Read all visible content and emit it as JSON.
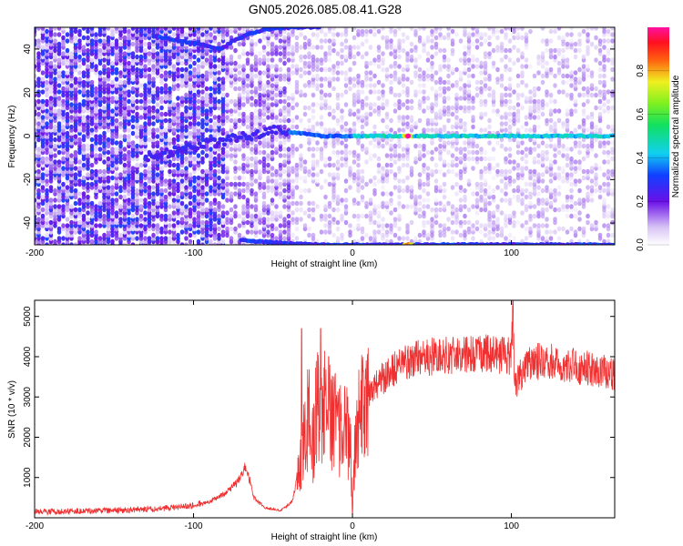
{
  "title": "GN05.2026.085.08.41.G28",
  "colors": {
    "snr_line": "#f03030",
    "spectrogram_base": "#7a20e8",
    "spectrogram_light": "#e4d2f7"
  },
  "chart_data": [
    {
      "type": "heatmap",
      "name": "spectrogram",
      "xlabel": "Height of straight line (km)",
      "ylabel": "Frequency (Hz)",
      "xlim": [
        -200,
        165
      ],
      "ylim": [
        -50,
        50
      ],
      "x_ticks": [
        -200,
        -100,
        0,
        100
      ],
      "x_tick_labels": [
        "-200",
        "-100",
        "0",
        "100"
      ],
      "y_ticks": [
        -40,
        -20,
        0,
        20,
        40
      ],
      "y_tick_labels": [
        "-40",
        "-20",
        "0",
        "20",
        "40"
      ],
      "traces": [
        {
          "label": "main carrier",
          "x": [
            -130,
            -100,
            -80,
            -60,
            -50,
            -40,
            -30,
            -20,
            0,
            40,
            100,
            165
          ],
          "y": [
            -10,
            -5,
            -2,
            1,
            3,
            2,
            1,
            0,
            0,
            0,
            0,
            0
          ]
        },
        {
          "label": "upper alias",
          "x": [
            -125,
            -110,
            -95,
            -82,
            -75,
            -65,
            -55,
            -40,
            -20
          ],
          "y": [
            46,
            44,
            42,
            40,
            44,
            47,
            49,
            50,
            50
          ]
        },
        {
          "label": "lower alias",
          "x": [
            -70,
            -50,
            -40,
            -20,
            0,
            50,
            100,
            165
          ],
          "y": [
            -48,
            -49,
            -49.5,
            -50,
            -50,
            -50,
            -50,
            -50
          ]
        }
      ],
      "peak": {
        "x": 35,
        "y": 0,
        "amplitude": 1.0
      }
    },
    {
      "type": "colorbar",
      "name": "colorbar",
      "label": "Normalized spectral amplitude",
      "range": [
        0,
        1
      ],
      "ticks": [
        0.0,
        0.2,
        0.4,
        0.6,
        0.8
      ],
      "tick_labels": [
        "0.0",
        "0.2",
        "0.4",
        "0.6",
        "0.8"
      ]
    },
    {
      "type": "line",
      "name": "snr",
      "xlabel": "Height of straight line (km)",
      "ylabel": "SNR (10 * v/v)",
      "xlim": [
        -200,
        165
      ],
      "ylim": [
        0,
        5400
      ],
      "x_ticks": [
        -200,
        -100,
        0,
        100
      ],
      "x_tick_labels": [
        "-200",
        "-100",
        "0",
        "100"
      ],
      "y_ticks": [
        1000,
        2000,
        3000,
        4000,
        5000
      ],
      "y_tick_labels": [
        "1000",
        "2000",
        "3000",
        "4000",
        "5000"
      ],
      "envelope": {
        "x": [
          -200,
          -150,
          -120,
          -100,
          -90,
          -80,
          -72,
          -67,
          -62,
          -55,
          -45,
          -38,
          -32,
          -28,
          -25,
          -22,
          -20,
          -18,
          -15,
          -12,
          -10,
          -8,
          -5,
          -3,
          -1,
          0,
          2,
          5,
          10,
          15,
          20,
          30,
          40,
          60,
          80,
          100,
          101,
          102,
          110,
          130,
          150,
          165
        ],
        "y": [
          120,
          150,
          200,
          280,
          400,
          600,
          900,
          1300,
          500,
          250,
          180,
          400,
          1500,
          2600,
          1800,
          3000,
          2200,
          2900,
          2400,
          2700,
          2300,
          2200,
          2400,
          2100,
          1500,
          50,
          2200,
          2600,
          3000,
          3300,
          3500,
          3800,
          3950,
          4050,
          4100,
          4000,
          5200,
          3200,
          3900,
          3850,
          3700,
          3550
        ]
      },
      "noise_amplitude": 0.12,
      "spikes": [
        {
          "x": -32,
          "y": 4700
        },
        {
          "x": -20,
          "y": 4700
        },
        {
          "x": -15,
          "y": 4000
        },
        {
          "x": -3,
          "y": 3000
        },
        {
          "x": 101,
          "y": 5400
        }
      ]
    }
  ]
}
